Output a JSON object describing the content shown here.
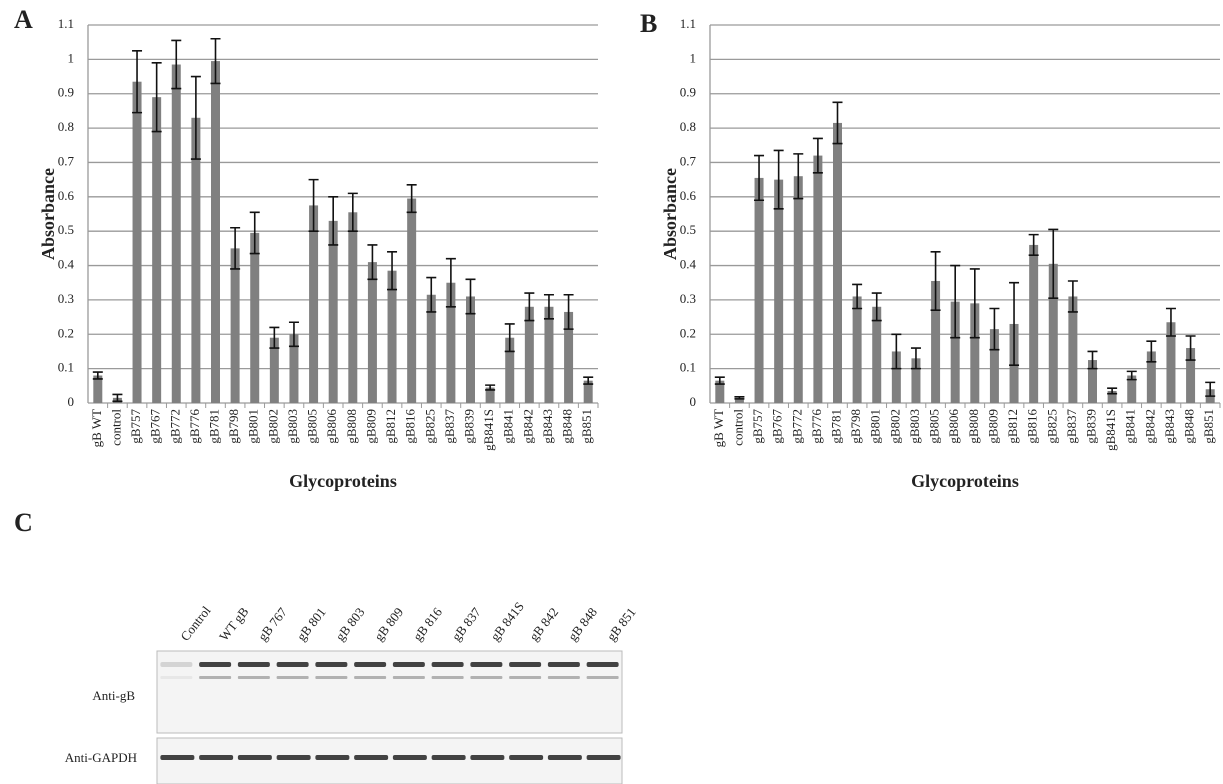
{
  "chart_data": [
    {
      "type": "bar",
      "panel": "A",
      "xlabel": "Glycoproteins",
      "ylabel": "Absorbance",
      "categories": [
        "gB WT",
        "control",
        "gB757",
        "gB767",
        "gB772",
        "gB776",
        "gB781",
        "gB798",
        "gB801",
        "gB802",
        "gB803",
        "gB805",
        "gB806",
        "gB808",
        "gB809",
        "gB812",
        "gB816",
        "gB825",
        "gB837",
        "gB839",
        "gB841S",
        "gB841",
        "gB842",
        "gB843",
        "gB848",
        "gB851"
      ],
      "values": [
        0.08,
        0.015,
        0.935,
        0.89,
        0.985,
        0.83,
        0.995,
        0.45,
        0.495,
        0.19,
        0.2,
        0.575,
        0.53,
        0.555,
        0.41,
        0.385,
        0.595,
        0.315,
        0.35,
        0.31,
        0.045,
        0.19,
        0.28,
        0.28,
        0.265,
        0.065
      ],
      "errors": [
        0.01,
        0.01,
        0.09,
        0.1,
        0.07,
        0.12,
        0.065,
        0.06,
        0.06,
        0.03,
        0.035,
        0.075,
        0.07,
        0.055,
        0.05,
        0.055,
        0.04,
        0.05,
        0.07,
        0.05,
        0.007,
        0.04,
        0.04,
        0.035,
        0.05,
        0.01
      ],
      "color": "#808080",
      "ylim": [
        0,
        1.1
      ],
      "yticks": [
        0,
        0.1,
        0.2,
        0.3,
        0.4,
        0.5,
        0.6,
        0.7,
        0.8,
        0.9,
        1,
        1.1
      ],
      "grid": true
    },
    {
      "type": "bar",
      "panel": "B",
      "xlabel": "Glycoproteins",
      "ylabel": "Absorbance",
      "categories": [
        "gB WT",
        "control",
        "gB757",
        "gB767",
        "gB772",
        "gB776",
        "gB781",
        "gB798",
        "gB801",
        "gB802",
        "gB803",
        "gB805",
        "gB806",
        "gB808",
        "gB809",
        "gB812",
        "gB816",
        "gB825",
        "gB837",
        "gB839",
        "gB841S",
        "gB841",
        "gB842",
        "gB843",
        "gB848",
        "gB851"
      ],
      "values": [
        0.065,
        0.015,
        0.655,
        0.65,
        0.66,
        0.72,
        0.815,
        0.31,
        0.28,
        0.15,
        0.13,
        0.355,
        0.295,
        0.29,
        0.215,
        0.23,
        0.46,
        0.405,
        0.31,
        0.125,
        0.035,
        0.08,
        0.15,
        0.235,
        0.16,
        0.04
      ],
      "errors": [
        0.01,
        0.003,
        0.065,
        0.085,
        0.065,
        0.05,
        0.06,
        0.035,
        0.04,
        0.05,
        0.03,
        0.085,
        0.105,
        0.1,
        0.06,
        0.12,
        0.03,
        0.1,
        0.045,
        0.025,
        0.008,
        0.012,
        0.03,
        0.04,
        0.035,
        0.02
      ],
      "color": "#808080",
      "ylim": [
        0,
        1.1
      ],
      "yticks": [
        0,
        0.1,
        0.2,
        0.3,
        0.4,
        0.5,
        0.6,
        0.7,
        0.8,
        0.9,
        1,
        1.1
      ],
      "grid": true
    }
  ],
  "blot": {
    "panel": "C",
    "lanes": [
      "Control",
      "WT gB",
      "gB 767",
      "gB 801",
      "gB 803",
      "gB 809",
      "gB 816",
      "gB 837",
      "gB 841S",
      "gB 842",
      "gB 848",
      "gB 851"
    ],
    "rows": [
      "Anti-gB",
      "Anti-GAPDH"
    ]
  }
}
